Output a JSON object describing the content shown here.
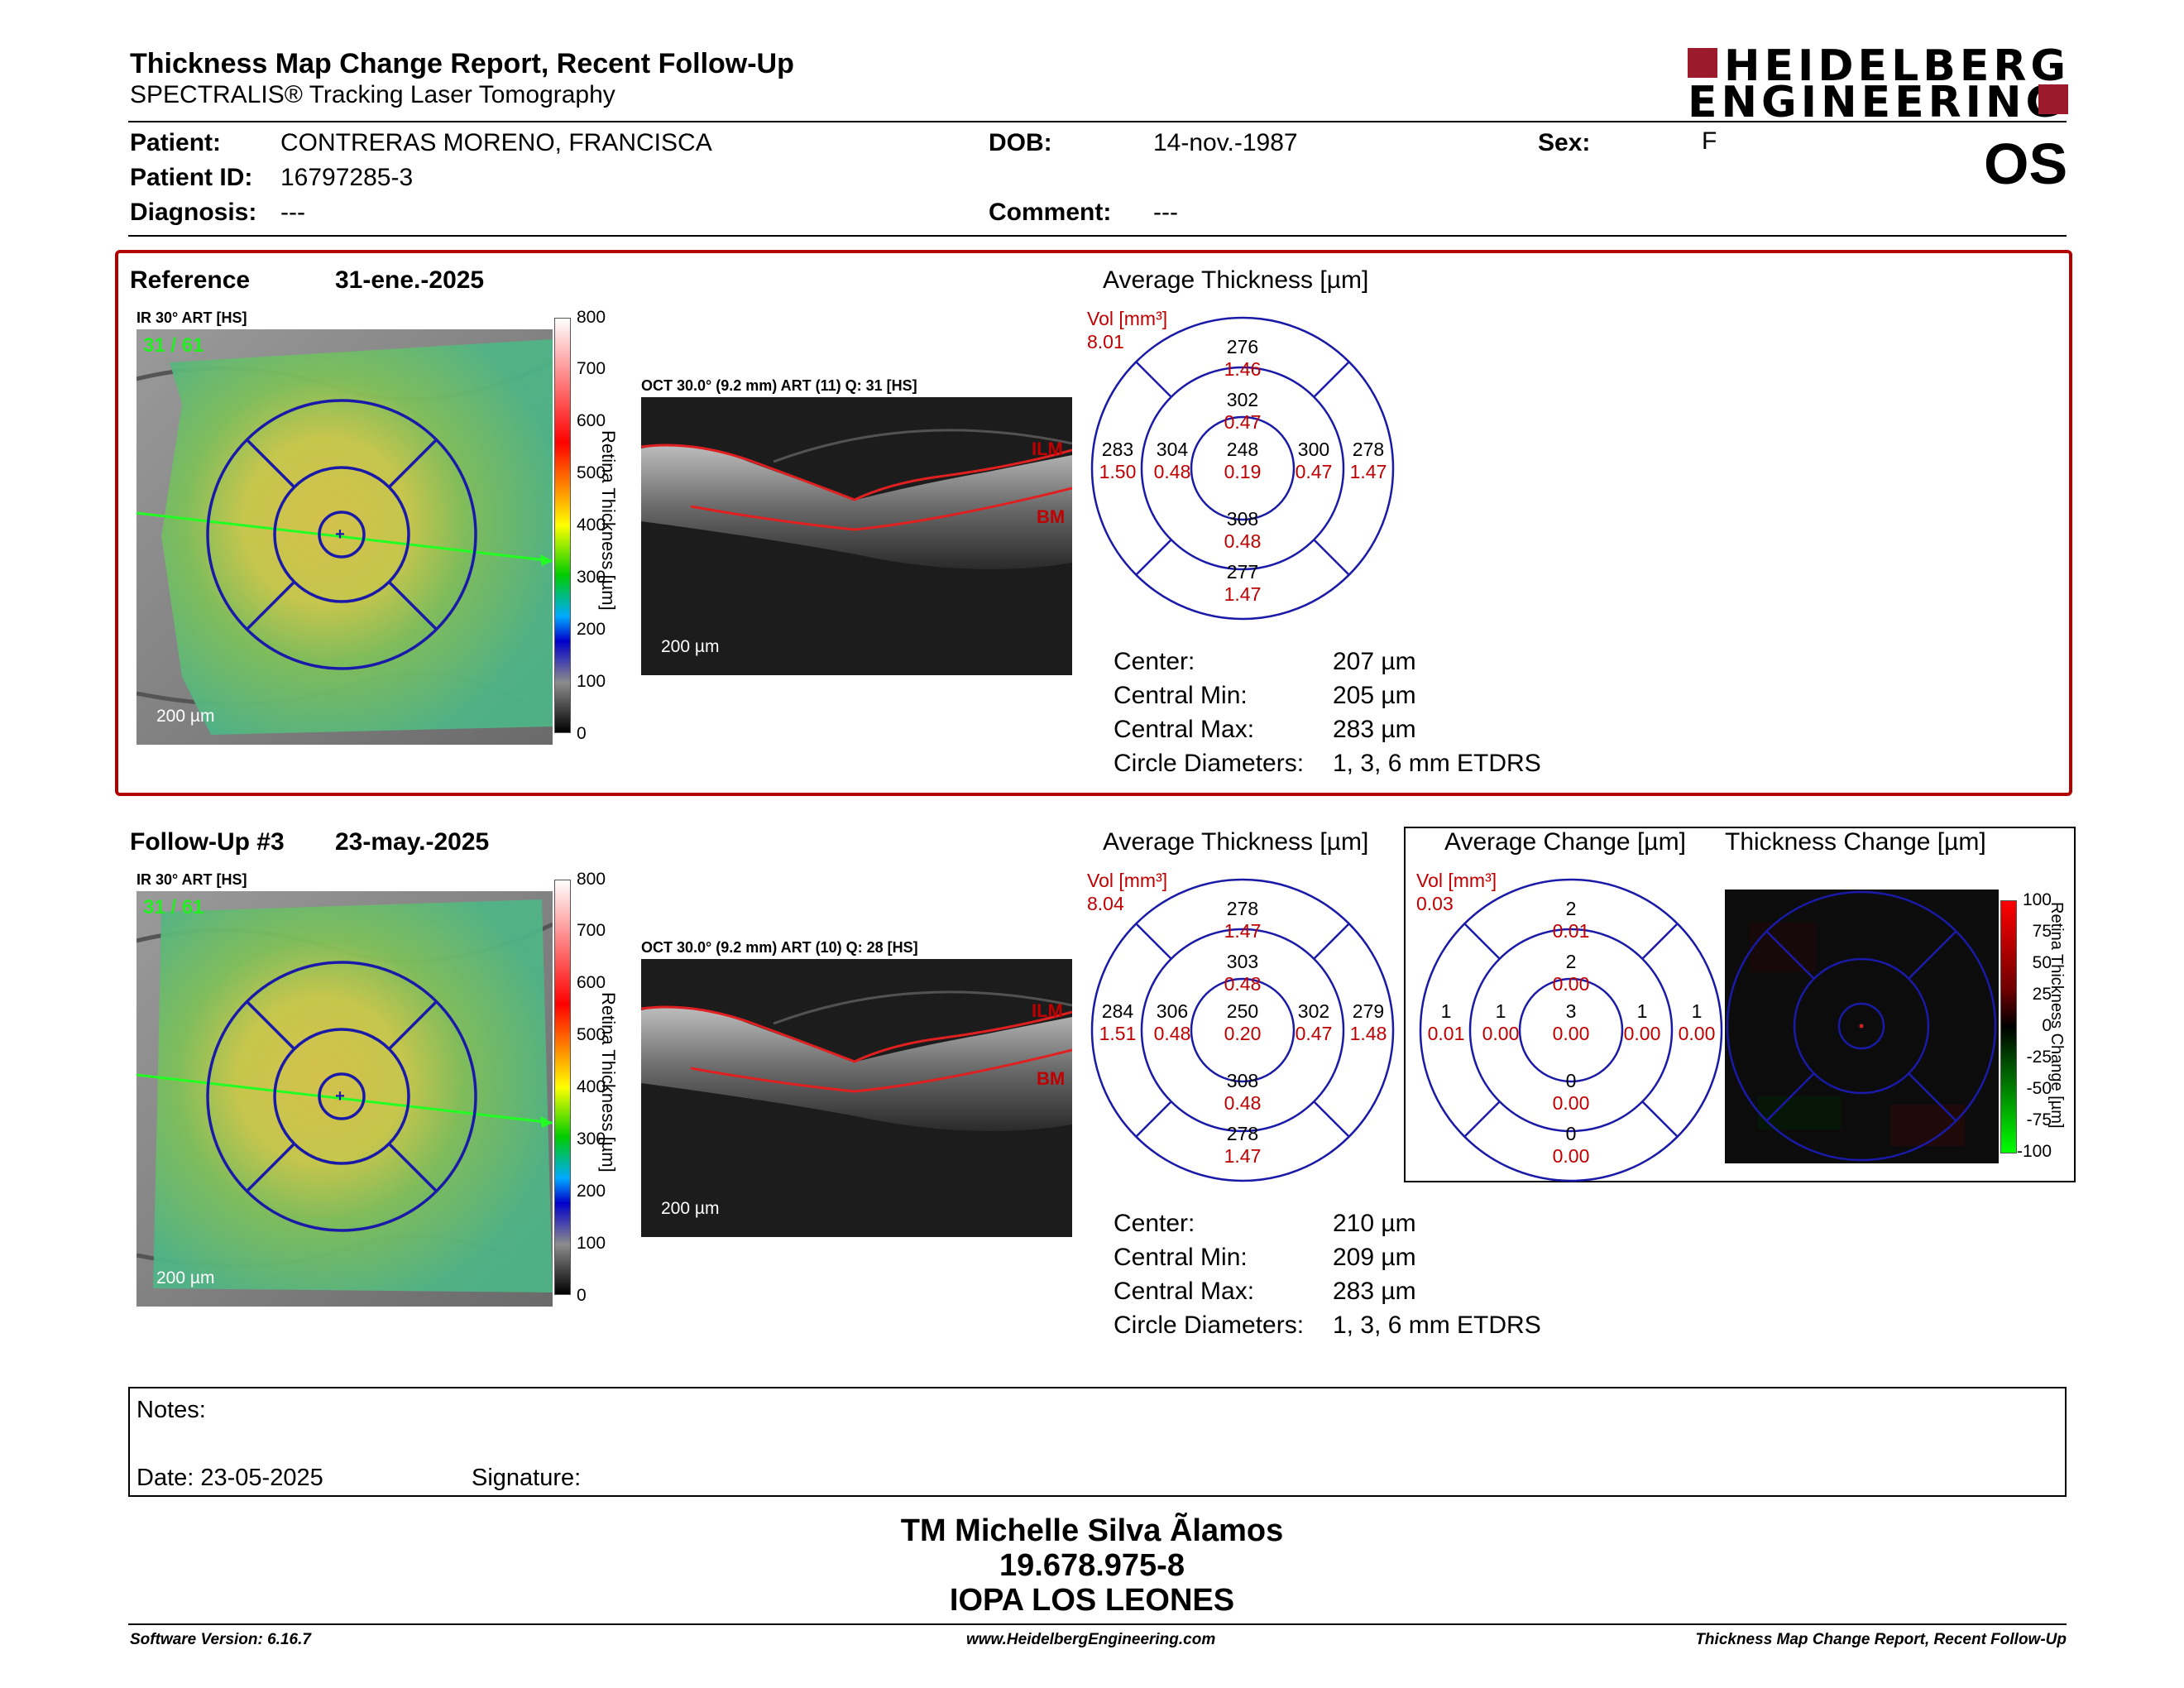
{
  "header": {
    "title": "Thickness Map Change Report, Recent Follow-Up",
    "subtitle": "SPECTRALIS® Tracking Laser Tomography",
    "logo_line1": "HEIDELBERG",
    "logo_line2": "ENGINEERING",
    "eye": "OS"
  },
  "patient": {
    "name_label": "Patient:",
    "name": "CONTRERAS MORENO, FRANCISCA",
    "id_label": "Patient ID:",
    "id": "16797285-3",
    "diagnosis_label": "Diagnosis:",
    "diagnosis": "---",
    "dob_label": "DOB:",
    "dob": "14-nov.-1987",
    "comment_label": "Comment:",
    "comment": "---",
    "sex_label": "Sex:",
    "sex": "F"
  },
  "reference": {
    "label": "Reference",
    "date": "31-ene.-2025",
    "ir_label": "IR 30° ART [HS]",
    "frame": "31 / 61",
    "scale": "200 µm",
    "colorbar_ticks": [
      "800",
      "700",
      "600",
      "500",
      "400",
      "300",
      "200",
      "100",
      "0"
    ],
    "colorbar_label": "Retina Thickness [µm]",
    "oct_label": "OCT 30.0° (9.2 mm) ART (11) Q: 31 [HS]",
    "oct_scale": "200 µm",
    "ilm": "ILM",
    "bm": "BM",
    "avg_title": "Average Thickness [µm]",
    "vol_label": "Vol [mm³]",
    "vol_total": "8.01",
    "etdrs": {
      "center": [
        "248",
        "0.19"
      ],
      "inner_top": [
        "302",
        "0.47"
      ],
      "inner_right": [
        "300",
        "0.47"
      ],
      "inner_bottom": [
        "308",
        "0.48"
      ],
      "inner_left": [
        "304",
        "0.48"
      ],
      "outer_top": [
        "276",
        "1.46"
      ],
      "outer_right": [
        "278",
        "1.47"
      ],
      "outer_bottom": [
        "277",
        "1.47"
      ],
      "outer_left": [
        "283",
        "1.50"
      ]
    },
    "stats": [
      {
        "label": "Center:",
        "value": "207 µm"
      },
      {
        "label": "Central Min:",
        "value": "205 µm"
      },
      {
        "label": "Central Max:",
        "value": "283 µm"
      },
      {
        "label": "Circle Diameters:",
        "value": "1, 3, 6 mm ETDRS"
      }
    ]
  },
  "followup": {
    "label": "Follow-Up #3",
    "date": "23-may.-2025",
    "ir_label": "IR 30° ART [HS]",
    "frame": "31 / 61",
    "scale": "200 µm",
    "colorbar_ticks": [
      "800",
      "700",
      "600",
      "500",
      "400",
      "300",
      "200",
      "100",
      "0"
    ],
    "colorbar_label": "Retina Thickness [µm]",
    "oct_label": "OCT 30.0° (9.2 mm) ART (10) Q: 28 [HS]",
    "oct_scale": "200 µm",
    "ilm": "ILM",
    "bm": "BM",
    "avg_title": "Average Thickness [µm]",
    "vol_label": "Vol [mm³]",
    "vol_total": "8.04",
    "etdrs": {
      "center": [
        "250",
        "0.20"
      ],
      "inner_top": [
        "303",
        "0.48"
      ],
      "inner_right": [
        "302",
        "0.47"
      ],
      "inner_bottom": [
        "308",
        "0.48"
      ],
      "inner_left": [
        "306",
        "0.48"
      ],
      "outer_top": [
        "278",
        "1.47"
      ],
      "outer_right": [
        "279",
        "1.48"
      ],
      "outer_bottom": [
        "278",
        "1.47"
      ],
      "outer_left": [
        "284",
        "1.51"
      ]
    },
    "stats": [
      {
        "label": "Center:",
        "value": "210 µm"
      },
      {
        "label": "Central Min:",
        "value": "209 µm"
      },
      {
        "label": "Central Max:",
        "value": "283 µm"
      },
      {
        "label": "Circle Diameters:",
        "value": "1, 3, 6 mm ETDRS"
      }
    ]
  },
  "change": {
    "avg_title": "Average Change [µm]",
    "vol_label": "Vol [mm³]",
    "vol_total": "0.03",
    "etdrs": {
      "center": [
        "3",
        "0.00"
      ],
      "inner_top": [
        "2",
        "0.00"
      ],
      "inner_right": [
        "1",
        "0.00"
      ],
      "inner_bottom": [
        "0",
        "0.00"
      ],
      "inner_left": [
        "1",
        "0.00"
      ],
      "outer_top": [
        "2",
        "0.01"
      ],
      "outer_right": [
        "1",
        "0.00"
      ],
      "outer_bottom": [
        "0",
        "0.00"
      ],
      "outer_left": [
        "1",
        "0.01"
      ]
    },
    "map_title": "Thickness Change [µm]",
    "bar_ticks": [
      "100",
      "75",
      "50",
      "25",
      "0",
      "-25",
      "-50",
      "-75",
      "-100"
    ],
    "bar_label": "Retina Thickness Change [µm]"
  },
  "notes": {
    "notes_label": "Notes:",
    "date_label": "Date: 23-05-2025",
    "signature_label": "Signature:"
  },
  "signature": {
    "name": "TM Michelle Silva Ãlamos",
    "rut": "19.678.975-8",
    "clinic": "IOPA LOS LEONES"
  },
  "footer": {
    "left": "Software Version: 6.16.7",
    "center": "www.HeidelbergEngineering.com",
    "right": "Thickness Map Change Report, Recent Follow-Up"
  },
  "colors": {
    "frame_red": "#b30000",
    "value_red": "#c00000",
    "etdrs_blue": "#1a1aa8",
    "logo_red": "#9b1a2c"
  }
}
